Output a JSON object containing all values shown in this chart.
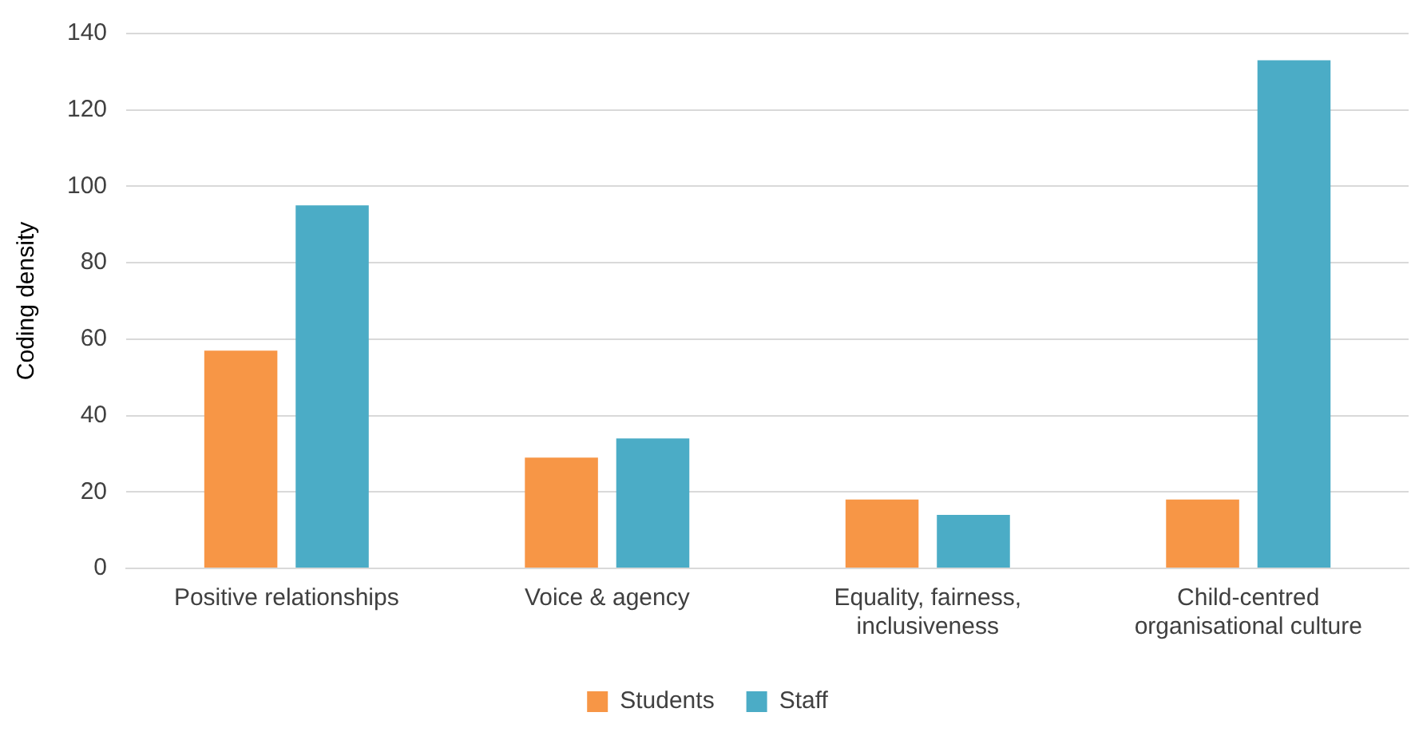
{
  "chart_data": {
    "type": "bar",
    "ylabel": "Coding density",
    "categories": [
      "Positive relationships",
      "Voice & agency",
      "Equality, fairness, inclusiveness",
      "Child-centred organisational culture"
    ],
    "series": [
      {
        "name": "Students",
        "color": "#f79646",
        "values": [
          57,
          29,
          18,
          18
        ]
      },
      {
        "name": "Staff",
        "color": "#4bacc6",
        "values": [
          95,
          34,
          14,
          133
        ]
      }
    ],
    "ylim": [
      0,
      140
    ],
    "yticks": [
      0,
      20,
      40,
      60,
      80,
      100,
      120,
      140
    ],
    "grid": "y",
    "legend": "bottom"
  }
}
